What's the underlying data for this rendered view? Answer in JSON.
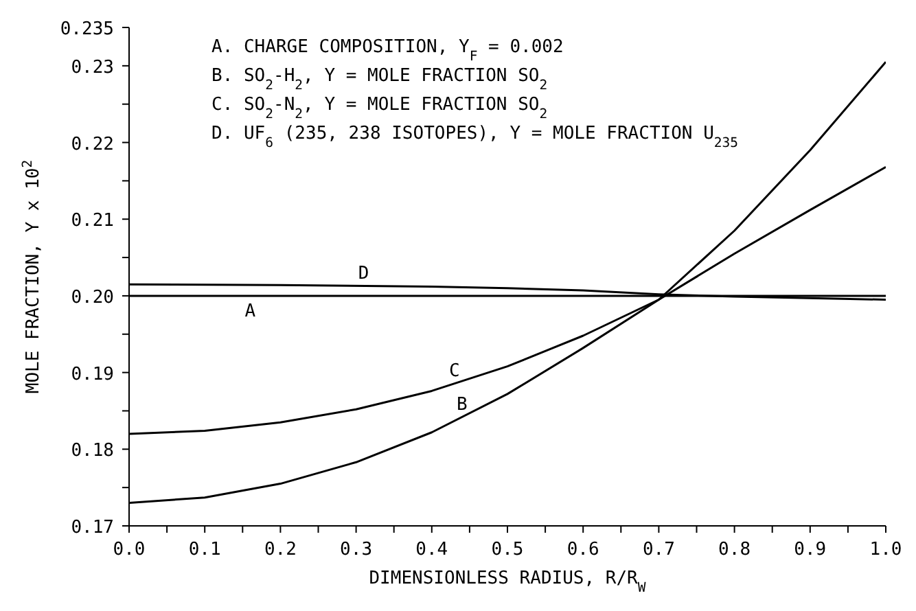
{
  "chart_data": {
    "type": "line",
    "xlabel": "DIMENSIONLESS RADIUS, R/R$_{W}$",
    "ylabel": "MOLE FRACTION, Y x 10$^{2}$",
    "xlim": [
      0,
      1
    ],
    "xticks": [
      {
        "value": 0,
        "label": "0.0"
      },
      {
        "value": 0.05,
        "label": null
      },
      0.1,
      {
        "value": 0.15,
        "label": null
      },
      0.2,
      {
        "value": 0.25,
        "label": null
      },
      0.3,
      {
        "value": 0.35,
        "label": null
      },
      0.4,
      {
        "value": 0.45,
        "label": null
      },
      0.5,
      {
        "value": 0.55,
        "label": null
      },
      0.6,
      {
        "value": 0.65,
        "label": null
      },
      0.7,
      {
        "value": 0.75,
        "label": null
      },
      0.8,
      {
        "value": 0.85,
        "label": null
      },
      0.9,
      {
        "value": 0.95,
        "label": null
      },
      {
        "value": 1,
        "label": "1.0"
      }
    ],
    "ylim": [
      0.17,
      0.235
    ],
    "yticks": [
      0.17,
      {
        "value": 0.175,
        "label": null
      },
      0.18,
      {
        "value": 0.185,
        "label": null
      },
      0.19,
      {
        "value": 0.195,
        "label": null
      },
      {
        "value": 0.2,
        "label": "0.20"
      },
      {
        "value": 0.205,
        "label": null
      },
      0.21,
      {
        "value": 0.215,
        "label": null
      },
      0.22,
      {
        "value": 0.225,
        "label": null
      },
      0.23,
      0.235
    ],
    "grid": false,
    "legend": false,
    "marker": "none",
    "line_style": "solid",
    "series": [
      {
        "color": "#000000",
        "x": [
          0,
          1
        ],
        "values": [
          0.2,
          0.2
        ]
      },
      {
        "color": "#000000",
        "x": [
          0,
          0.1,
          0.2,
          0.3,
          0.4,
          0.5,
          0.6,
          0.7,
          0.8,
          0.9,
          1
        ],
        "values": [
          0.173,
          0.1737,
          0.1755,
          0.1783,
          0.1822,
          0.1872,
          0.1932,
          0.1995,
          0.2085,
          0.219,
          0.2305
        ]
      },
      {
        "color": "#000000",
        "x": [
          0,
          0.1,
          0.2,
          0.3,
          0.4,
          0.5,
          0.6,
          0.7,
          0.8,
          0.9,
          1
        ],
        "values": [
          0.182,
          0.1824,
          0.1835,
          0.1852,
          0.1876,
          0.1908,
          0.1948,
          0.1995,
          0.2055,
          0.2112,
          0.2168
        ]
      },
      {
        "color": "#000000",
        "x": [
          0,
          0.2,
          0.4,
          0.5,
          0.6,
          0.7,
          0.8,
          0.9,
          1
        ],
        "values": [
          0.2015,
          0.2014,
          0.2012,
          0.201,
          0.2007,
          0.2002,
          0.1999,
          0.1997,
          0.1995
        ]
      }
    ],
    "annotations": [
      "A.  CHARGE COMPOSITION, Y$_{F}$ = 0.002",
      "B.  SO$_{2}$-H$_{2}$, Y = MOLE FRACTION SO$_{2}$",
      "C.  SO$_{2}$-N$_{2}$, Y = MOLE FRACTION SO$_{2}$",
      "D.  UF$_{6}$ (235, 238 ISOTOPES), Y = MOLE FRACTION U$_{235}$",
      {
        "text": "A",
        "x": 0.16,
        "y": 0.2
      },
      {
        "text": "B",
        "x": 0.44,
        "y": 0.1842
      },
      {
        "text": "C",
        "x": 0.43,
        "y": 0.1886
      },
      {
        "text": "D",
        "x": 0.31,
        "y": 0.2013
      }
    ]
  }
}
